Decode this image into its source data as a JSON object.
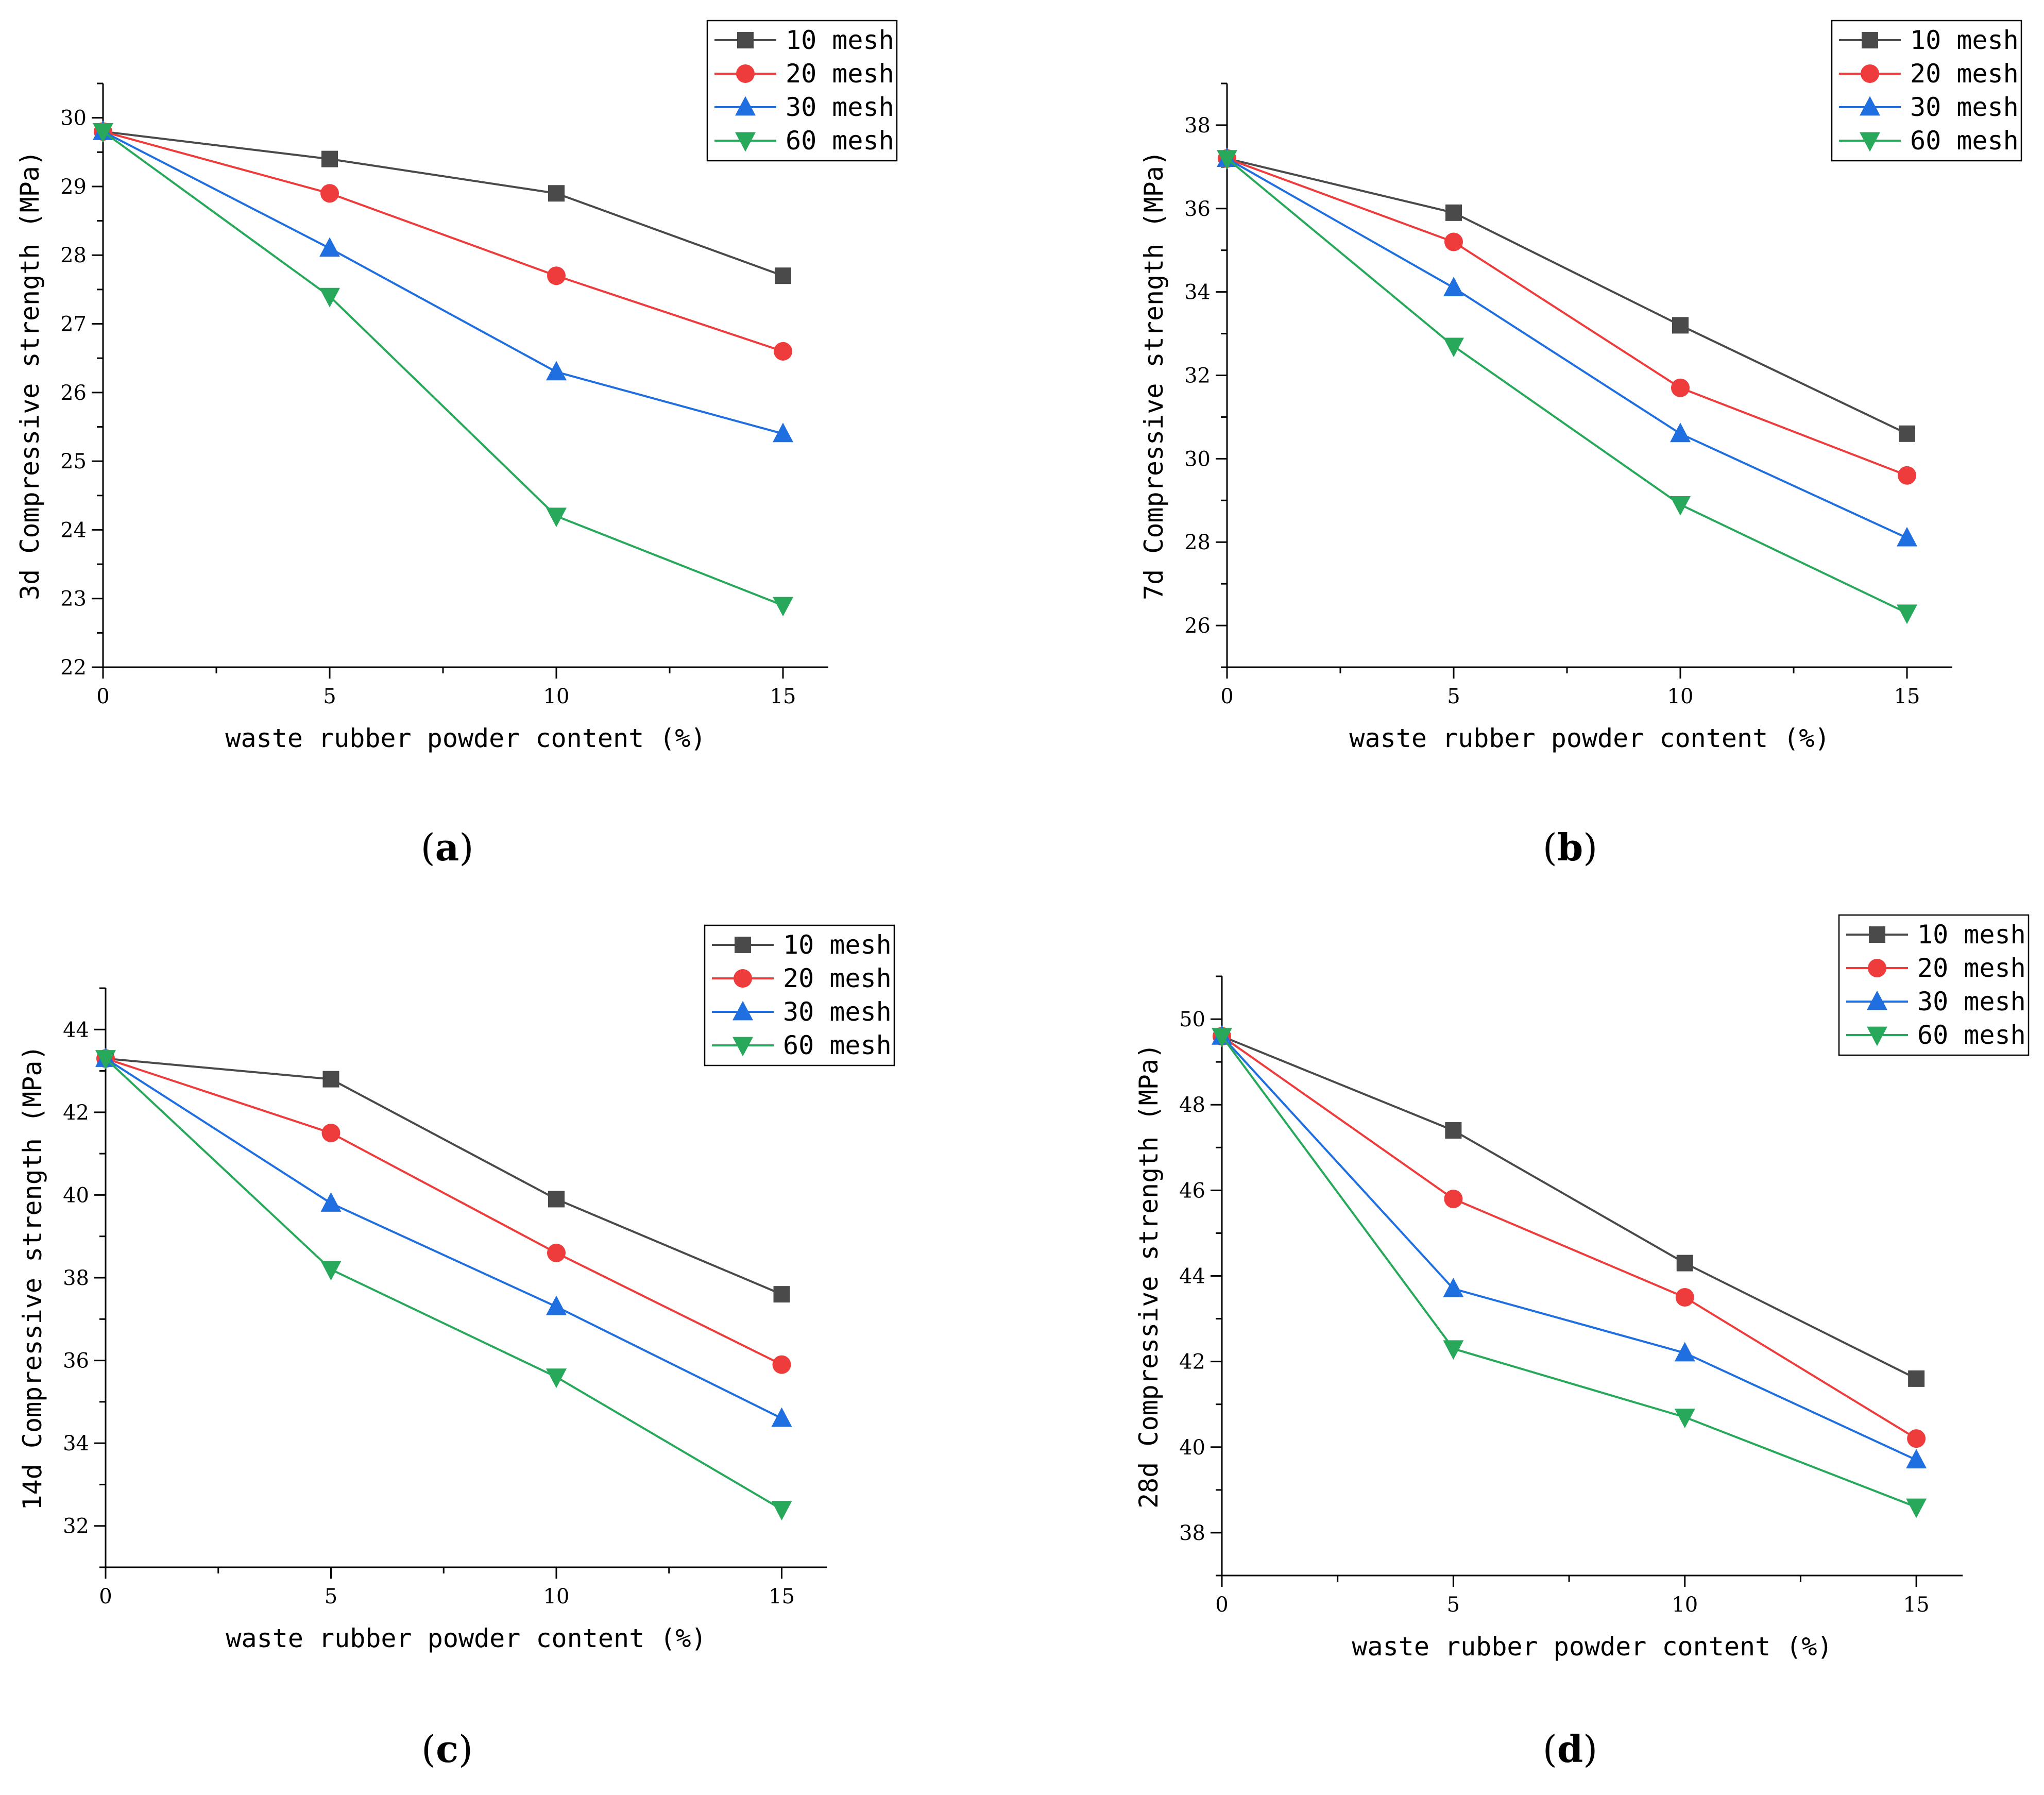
{
  "chart_data": [
    {
      "type": "line",
      "panel_label": "a",
      "x": [
        0,
        5,
        10,
        15
      ],
      "xlabel": "waste rubber powder content (%)",
      "ylabel": "3d Compressive strength (MPa)",
      "xlim": [
        0,
        16
      ],
      "ylim": [
        22,
        30.5
      ],
      "xticks": [
        "0",
        "5",
        "10",
        "15"
      ],
      "yticks": [
        "22",
        "23",
        "24",
        "25",
        "26",
        "27",
        "28",
        "29",
        "30"
      ],
      "legend_position": "top-right",
      "series": [
        {
          "name": "10 mesh",
          "values": [
            29.8,
            29.4,
            28.9,
            27.7
          ]
        },
        {
          "name": "20 mesh",
          "values": [
            29.8,
            28.9,
            27.7,
            26.6
          ]
        },
        {
          "name": "30 mesh",
          "values": [
            29.8,
            28.1,
            26.3,
            25.4
          ]
        },
        {
          "name": "60 mesh",
          "values": [
            29.8,
            27.4,
            24.2,
            22.9
          ]
        }
      ]
    },
    {
      "type": "line",
      "panel_label": "b",
      "x": [
        0,
        5,
        10,
        15
      ],
      "xlabel": "waste rubber powder content (%)",
      "ylabel": "7d Compressive strength (MPa)",
      "xlim": [
        0,
        16
      ],
      "ylim": [
        25,
        39
      ],
      "xticks": [
        "0",
        "5",
        "10",
        "15"
      ],
      "yticks": [
        "26",
        "28",
        "30",
        "32",
        "34",
        "36",
        "38"
      ],
      "legend_position": "top-right",
      "series": [
        {
          "name": "10 mesh",
          "values": [
            37.2,
            35.9,
            33.2,
            30.6
          ]
        },
        {
          "name": "20 mesh",
          "values": [
            37.2,
            35.2,
            31.7,
            29.6
          ]
        },
        {
          "name": "30 mesh",
          "values": [
            37.2,
            34.1,
            30.6,
            28.1
          ]
        },
        {
          "name": "60 mesh",
          "values": [
            37.2,
            32.7,
            28.9,
            26.3
          ]
        }
      ]
    },
    {
      "type": "line",
      "panel_label": "c",
      "x": [
        0,
        5,
        10,
        15
      ],
      "xlabel": "waste rubber powder content (%)",
      "ylabel": "14d Compressive strength (MPa)",
      "xlim": [
        0,
        16
      ],
      "ylim": [
        31,
        45
      ],
      "xticks": [
        "0",
        "5",
        "10",
        "15"
      ],
      "yticks": [
        "32",
        "34",
        "36",
        "38",
        "40",
        "42",
        "44"
      ],
      "legend_position": "top-right",
      "series": [
        {
          "name": "10 mesh",
          "values": [
            43.3,
            42.8,
            39.9,
            37.6
          ]
        },
        {
          "name": "20 mesh",
          "values": [
            43.3,
            41.5,
            38.6,
            35.9
          ]
        },
        {
          "name": "30 mesh",
          "values": [
            43.3,
            39.8,
            37.3,
            34.6
          ]
        },
        {
          "name": "60 mesh",
          "values": [
            43.3,
            38.2,
            35.6,
            32.4
          ]
        }
      ]
    },
    {
      "type": "line",
      "panel_label": "d",
      "x": [
        0,
        5,
        10,
        15
      ],
      "xlabel": "waste rubber powder content (%)",
      "ylabel": "28d Compressive strength (MPa)",
      "xlim": [
        0,
        16
      ],
      "ylim": [
        37,
        51
      ],
      "xticks": [
        "0",
        "5",
        "10",
        "15"
      ],
      "yticks": [
        "38",
        "40",
        "42",
        "44",
        "46",
        "48",
        "50"
      ],
      "legend_position": "top-right",
      "series": [
        {
          "name": "10 mesh",
          "values": [
            49.6,
            47.4,
            44.3,
            41.6
          ]
        },
        {
          "name": "20 mesh",
          "values": [
            49.6,
            45.8,
            43.5,
            40.2
          ]
        },
        {
          "name": "30 mesh",
          "values": [
            49.6,
            43.7,
            42.2,
            39.7
          ]
        },
        {
          "name": "60 mesh",
          "values": [
            49.6,
            42.3,
            40.7,
            38.6
          ]
        }
      ]
    }
  ],
  "style": {
    "series_colors": [
      "#4a4a4a",
      "#ee3b3b",
      "#1f6fe0",
      "#27a85a"
    ],
    "series_markers": [
      "square",
      "circle",
      "triangle-up",
      "triangle-down"
    ],
    "grid": false
  }
}
